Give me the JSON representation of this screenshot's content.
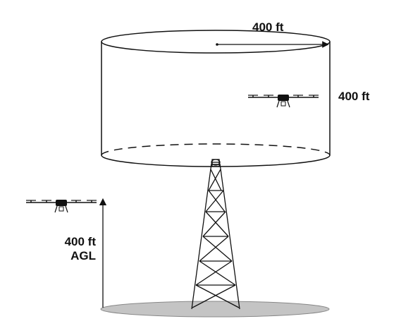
{
  "labels": {
    "radius": "400 ft",
    "height": "400 ft",
    "agl_value": "400 ft",
    "agl_unit": "AGL"
  },
  "colors": {
    "stroke": "#111111",
    "ground": "#c4c4c4",
    "background": "#ffffff"
  },
  "icons": [
    "drone-icon",
    "tower-icon",
    "arrow-up-icon"
  ]
}
